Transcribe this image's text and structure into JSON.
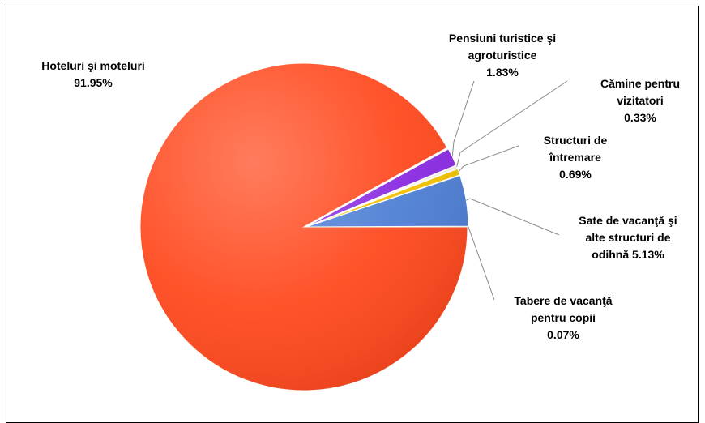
{
  "chart_data": {
    "type": "pie",
    "title": "",
    "slices": [
      {
        "name": "Hoteluri şi moteluri",
        "value": 91.95,
        "label_lines": [
          "Hoteluri şi moteluri",
          "91.95%"
        ],
        "color": "#ff4a1f"
      },
      {
        "name": "Pensiuni turistice şi agroturistice",
        "value": 1.83,
        "label_lines": [
          "Pensiuni turistice şi",
          "agroturistice",
          "1.83%"
        ],
        "color": "#8a2be2"
      },
      {
        "name": "Cămine pentru vizitatori",
        "value": 0.33,
        "label_lines": [
          "Cămine pentru",
          "vizitatori",
          "0.33%"
        ],
        "color": "#f7f4e6"
      },
      {
        "name": "Structuri de întremare",
        "value": 0.69,
        "label_lines": [
          "Structuri de",
          "întremare",
          "0.69%"
        ],
        "color": "#f2c200"
      },
      {
        "name": "Sate de vacanţă şi alte structuri de odihnă",
        "value": 5.13,
        "label_lines": [
          "Sate de vacanţă  şi",
          "alte structuri de",
          "odihnă 5.13%"
        ],
        "color": "#4f80d4"
      },
      {
        "name": "Tabere de vacanţă pentru copii",
        "value": 0.07,
        "label_lines": [
          "Tabere de vacanţă",
          "pentru copii",
          "0.07%"
        ],
        "color": "#3aa03a"
      }
    ]
  }
}
